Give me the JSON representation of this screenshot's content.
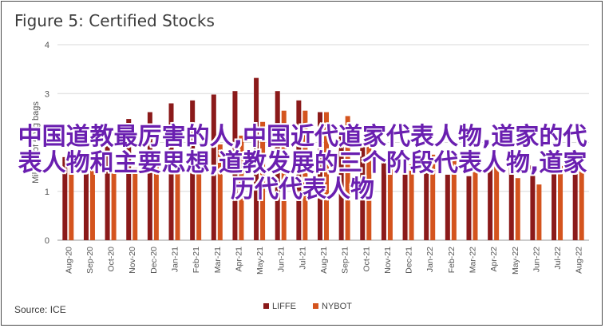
{
  "overlay_text": "中国道教最厉害的人,中国近代道家代表人物,道家的代表人物和主要思想,道教发展的三个阶段代表人物,道家历代代表人物",
  "source": "Source: ICE",
  "chart_data": {
    "type": "bar",
    "title": "Figure 5: Certified Stocks",
    "ylabel": "Millions of 60kg bags",
    "xlabel": "",
    "ylim": [
      0,
      4
    ],
    "yticks": [
      0,
      1,
      2,
      3,
      4
    ],
    "legend_position": "bottom",
    "grid": true,
    "categories": [
      "Aug-20",
      "Sep-20",
      "Oct-20",
      "Nov-20",
      "Dec-20",
      "Jan-21",
      "Feb-21",
      "Mar-21",
      "Apr-21",
      "May-21",
      "Jun-21",
      "Jul-21",
      "Aug-21",
      "Sep-21",
      "Oct-21",
      "Nov-21",
      "Dec-21",
      "Jan-22",
      "Feb-22",
      "Mar-22",
      "Apr-22",
      "May-22",
      "Jun-22",
      "Jul-22",
      "Aug-22"
    ],
    "series": [
      {
        "name": "LIFFE",
        "color": "#8b1a1a",
        "values": [
          1.7,
          1.7,
          2.08,
          2.48,
          2.62,
          2.8,
          2.86,
          2.98,
          3.05,
          3.32,
          3.05,
          2.86,
          2.62,
          2.18,
          1.96,
          1.58,
          1.45,
          1.38,
          1.34,
          1.31,
          1.52,
          1.51,
          1.53,
          1.62,
          1.65
        ]
      },
      {
        "name": "NYBOT",
        "color": "#d4541e",
        "values": [
          1.5,
          1.48,
          1.4,
          1.48,
          1.58,
          1.5,
          1.85,
          1.96,
          2.14,
          2.42,
          2.65,
          2.65,
          2.62,
          2.54,
          2.02,
          1.45,
          1.55,
          1.75,
          1.66,
          1.82,
          1.58,
          1.27,
          1.14,
          1.52,
          1.42
        ]
      }
    ]
  }
}
